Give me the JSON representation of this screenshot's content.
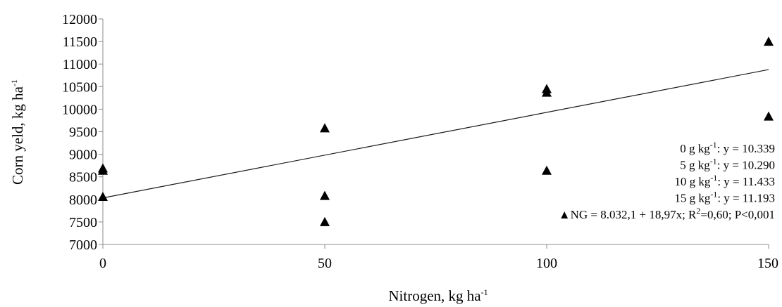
{
  "chart_data": {
    "type": "scatter",
    "x_axis": {
      "title": "Nitrogen, kg ha",
      "title_sup": "-1",
      "min": 0,
      "max": 150,
      "ticks": [
        0,
        50,
        100,
        150
      ],
      "tick_labels": [
        "0",
        "50",
        "100",
        "150"
      ]
    },
    "y_axis": {
      "title": "Corn yeld, kg ha",
      "title_sup": "-1",
      "min": 7000,
      "max": 12000,
      "ticks": [
        7000,
        7500,
        8000,
        8500,
        9000,
        9500,
        10000,
        10500,
        11000,
        11500,
        12000
      ],
      "tick_labels": [
        "7000",
        "7500",
        "8000",
        "8500",
        "9000",
        "9500",
        "10000",
        "10500",
        "11000",
        "11500",
        "12000"
      ]
    },
    "points": [
      {
        "x": 0,
        "y": 8690
      },
      {
        "x": 0,
        "y": 8640
      },
      {
        "x": 0,
        "y": 8060
      },
      {
        "x": 50,
        "y": 9580
      },
      {
        "x": 50,
        "y": 8080
      },
      {
        "x": 50,
        "y": 7500
      },
      {
        "x": 100,
        "y": 10450
      },
      {
        "x": 100,
        "y": 10370
      },
      {
        "x": 100,
        "y": 8640
      },
      {
        "x": 150,
        "y": 11500
      },
      {
        "x": 150,
        "y": 9840
      }
    ],
    "trendline": {
      "intercept": 8032.1,
      "slope": 18.97,
      "x_start": 0,
      "x_end": 150
    },
    "annotations": [
      {
        "pre": "0 g kg",
        "sup": "-1",
        "post": ": y = 10.339"
      },
      {
        "pre": "5 g kg",
        "sup": "-1",
        "post": ": y = 10.290"
      },
      {
        "pre": "10 g kg",
        "sup": "-1",
        "post": ": y = 11.433"
      },
      {
        "pre": "15 g kg",
        "sup": "-1",
        "post": ": y = 11.193"
      },
      {
        "pre": "▲NG = 8.032,1 + 18,97x; R",
        "sup": "2",
        "post": "=0,60; P<0,001"
      }
    ],
    "grid": false,
    "legend": "none"
  }
}
